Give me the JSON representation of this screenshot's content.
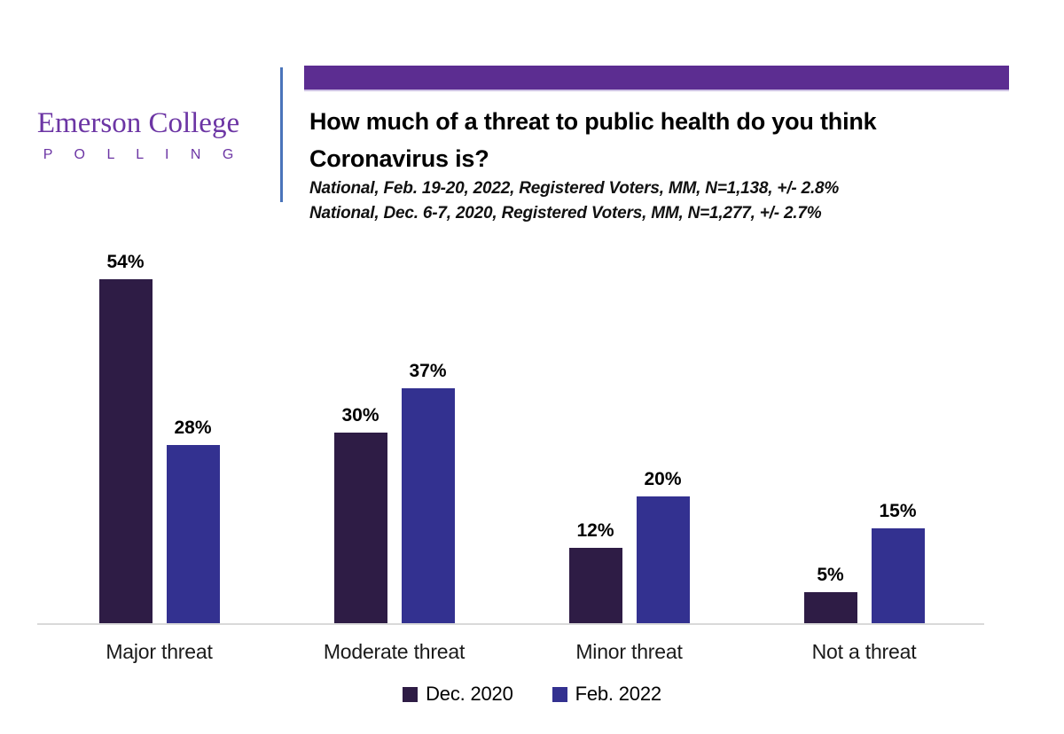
{
  "logo": {
    "name": "Emerson College",
    "subname": "P O L L I N G"
  },
  "header": {
    "title_lines": [
      "How much of a threat to public health do you think",
      "Coronavirus is?"
    ],
    "subtitle_lines": [
      "National, Feb. 19-20, 2022, Registered Voters, MM, N=1,138, +/- 2.8%",
      "National, Dec. 6-7, 2020, Registered Voters, MM, N=1,277, +/- 2.7%"
    ]
  },
  "chart_data": {
    "type": "bar",
    "title": "How much of a threat to public health do you think Coronavirus is?",
    "categories": [
      "Major threat",
      "Moderate threat",
      "Minor threat",
      "Not a threat"
    ],
    "series": [
      {
        "name": "Dec. 2020",
        "color": "#2e1c45",
        "values": [
          54,
          30,
          12,
          5
        ]
      },
      {
        "name": "Feb. 2022",
        "color": "#333190",
        "values": [
          28,
          37,
          20,
          15
        ]
      }
    ],
    "value_suffix": "%",
    "xlabel": "",
    "ylabel": "",
    "ylim": [
      0,
      60
    ],
    "grid": false,
    "legend_position": "bottom",
    "value_labels": "above-bars"
  },
  "colors": {
    "banner": "#5c2d91",
    "logo_text": "#6c35a4",
    "divider": "#4a74ba",
    "axis_line": "#d9d9d9",
    "background": "#ffffff"
  }
}
